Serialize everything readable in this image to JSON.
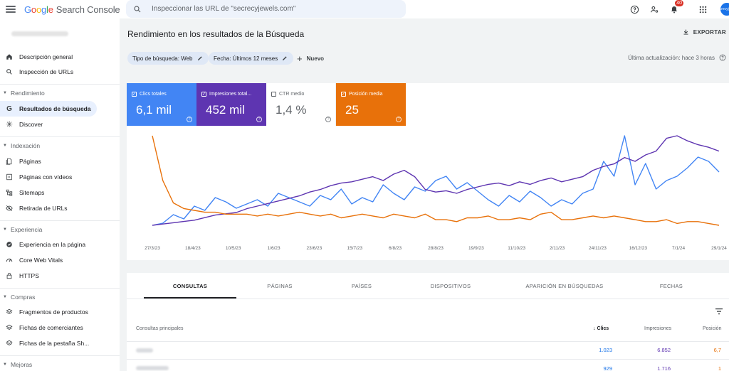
{
  "app": {
    "logo_google": [
      "G",
      "o",
      "o",
      "g",
      "l",
      "e"
    ],
    "logo_product": "Search Console"
  },
  "search": {
    "placeholder": "Inspeccionar las URL de \"secrecyjewels.com\""
  },
  "topbar": {
    "notifications_count": "40",
    "avatar_text": "secrecyjewels"
  },
  "sidebar": {
    "property": "secrecyjewels.com",
    "items": [
      {
        "label": "Descripción general",
        "icon": "home-icon"
      },
      {
        "label": "Inspección de URLs",
        "icon": "search-icon"
      }
    ],
    "sections": [
      {
        "title": "Rendimiento",
        "items": [
          {
            "label": "Resultados de búsqueda",
            "icon": "google-g-icon",
            "active": true
          },
          {
            "label": "Discover",
            "icon": "asterisk-icon"
          }
        ]
      },
      {
        "title": "Indexación",
        "items": [
          {
            "label": "Páginas",
            "icon": "pages-icon"
          },
          {
            "label": "Páginas con vídeos",
            "icon": "video-pages-icon"
          },
          {
            "label": "Sitemaps",
            "icon": "sitemap-icon"
          },
          {
            "label": "Retirada de URLs",
            "icon": "eye-off-icon"
          }
        ]
      },
      {
        "title": "Experiencia",
        "items": [
          {
            "label": "Experiencia en la página",
            "icon": "page-experience-icon"
          },
          {
            "label": "Core Web Vitals",
            "icon": "speedometer-icon"
          },
          {
            "label": "HTTPS",
            "icon": "lock-icon"
          }
        ]
      },
      {
        "title": "Compras",
        "items": [
          {
            "label": "Fragmentos de productos",
            "icon": "layers-icon"
          },
          {
            "label": "Fichas de comerciantes",
            "icon": "layers-icon"
          },
          {
            "label": "Fichas de la pestaña Sh...",
            "icon": "layers-icon"
          }
        ]
      },
      {
        "title": "Mejoras",
        "items": []
      }
    ]
  },
  "main": {
    "title": "Rendimiento en los resultados de la Búsqueda",
    "export_label": "EXPORTAR",
    "chips": [
      {
        "label": "Tipo de búsqueda: Web"
      },
      {
        "label": "Fecha: Últimos 12 meses"
      }
    ],
    "new_label": "Nuevo",
    "last_update": "Última actualización: hace 3 horas"
  },
  "metrics": [
    {
      "label": "Clics totales",
      "value": "6,1 mil",
      "checked": true,
      "color": "#4285f4"
    },
    {
      "label": "Impresiones total...",
      "value": "452 mil",
      "checked": true,
      "color": "#5e35b1"
    },
    {
      "label": "CTR medio",
      "value": "1,4 %",
      "checked": false,
      "color": "#ffffff"
    },
    {
      "label": "Posición media",
      "value": "25",
      "checked": true,
      "color": "#e8710a"
    }
  ],
  "chart_data": {
    "type": "line",
    "x_ticks": [
      "27/3/23",
      "18/4/23",
      "10/5/23",
      "1/6/23",
      "23/6/23",
      "15/7/23",
      "6/8/23",
      "28/8/23",
      "19/9/23",
      "11/10/23",
      "2/11/23",
      "24/11/23",
      "16/12/23",
      "7/1/24",
      "29/1/24"
    ],
    "grid": false,
    "series": [
      {
        "name": "Clics totales",
        "color": "#4285f4",
        "values": [
          3,
          4,
          8,
          6,
          12,
          10,
          16,
          14,
          11,
          13,
          15,
          12,
          18,
          16,
          14,
          12,
          17,
          15,
          20,
          13,
          16,
          14,
          22,
          18,
          15,
          21,
          19,
          24,
          26,
          20,
          23,
          19,
          15,
          12,
          17,
          14,
          19,
          16,
          12,
          15,
          13,
          18,
          20,
          33,
          26,
          45,
          22,
          32,
          20,
          24,
          26,
          30,
          35,
          33,
          28
        ]
      },
      {
        "name": "Impresiones totales",
        "color": "#5e35b1",
        "values": [
          2,
          3,
          4,
          5,
          6,
          8,
          10,
          11,
          12,
          15,
          17,
          19,
          21,
          23,
          25,
          28,
          30,
          33,
          35,
          36,
          38,
          40,
          37,
          42,
          45,
          40,
          30,
          28,
          29,
          27,
          30,
          32,
          34,
          35,
          33,
          36,
          34,
          37,
          39,
          36,
          38,
          40,
          45,
          48,
          50,
          55,
          52,
          57,
          60,
          70,
          72,
          68,
          65,
          63,
          60
        ]
      },
      {
        "name": "Posición media",
        "color": "#e8710a",
        "values": [
          72,
          48,
          36,
          33,
          32,
          31,
          31,
          30,
          30,
          30,
          29,
          30,
          29,
          30,
          31,
          30,
          29,
          30,
          28,
          29,
          30,
          29,
          28,
          30,
          29,
          28,
          30,
          27,
          27,
          26,
          28,
          28,
          29,
          27,
          27,
          28,
          27,
          30,
          31,
          27,
          27,
          28,
          29,
          28,
          29,
          28,
          27,
          26,
          26,
          27,
          25,
          26,
          26,
          25,
          24
        ]
      }
    ]
  },
  "table": {
    "tabs": [
      "CONSULTAS",
      "PÁGINAS",
      "PAÍSES",
      "DISPOSITIVOS",
      "APARICIÓN EN BÚSQUEDAS",
      "FECHAS"
    ],
    "headers": {
      "query": "Consultas principales",
      "clicks": "Clics",
      "impressions": "Impresiones",
      "position": "Posición"
    },
    "rows": [
      {
        "query": "secrecy",
        "clicks": "1.023",
        "impressions": "6.852",
        "position": "6,7"
      },
      {
        "query": "secrecyjewels",
        "clicks": "929",
        "impressions": "1.716",
        "position": "1"
      }
    ]
  }
}
